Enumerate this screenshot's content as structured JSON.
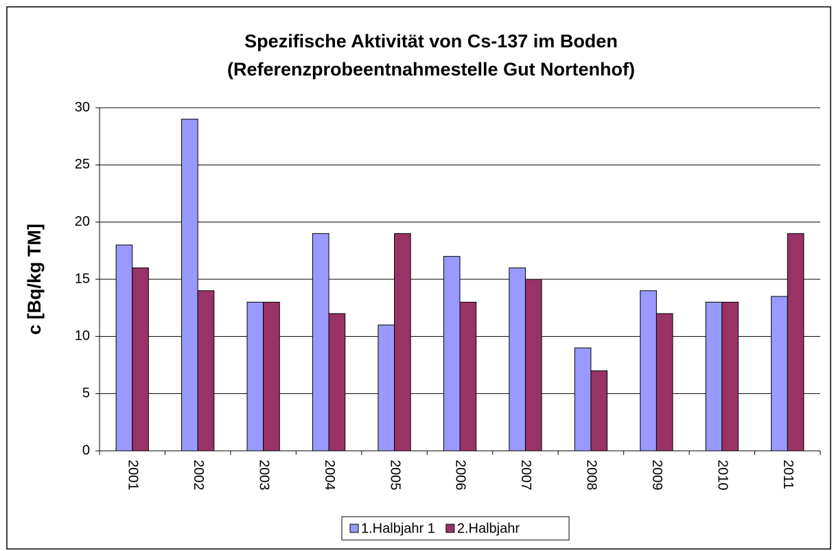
{
  "chart_data": {
    "type": "bar",
    "title": "Spezifische Aktivität von Cs-137 im Boden",
    "subtitle": "(Referenzprobeentnahmestelle Gut Nortenhof)",
    "y_label": "c [Bq/kg TM]",
    "categories": [
      "2001",
      "2002",
      "2003",
      "2004",
      "2005",
      "2006",
      "2007",
      "2008",
      "2009",
      "2010",
      "2011"
    ],
    "series": [
      {
        "name": "1.Halbjahr 1",
        "color": "#9999ff",
        "values": [
          18,
          29,
          13,
          19,
          11,
          17,
          16,
          9,
          14,
          13,
          13.5
        ]
      },
      {
        "name": "2.Halbjahr",
        "color": "#993366",
        "values": [
          16,
          14,
          13,
          12,
          19,
          13,
          15,
          7,
          12,
          13,
          19
        ]
      }
    ],
    "ylim": [
      0,
      30
    ],
    "yticks": [
      0,
      5,
      10,
      15,
      20,
      25,
      30
    ],
    "grid": true
  }
}
